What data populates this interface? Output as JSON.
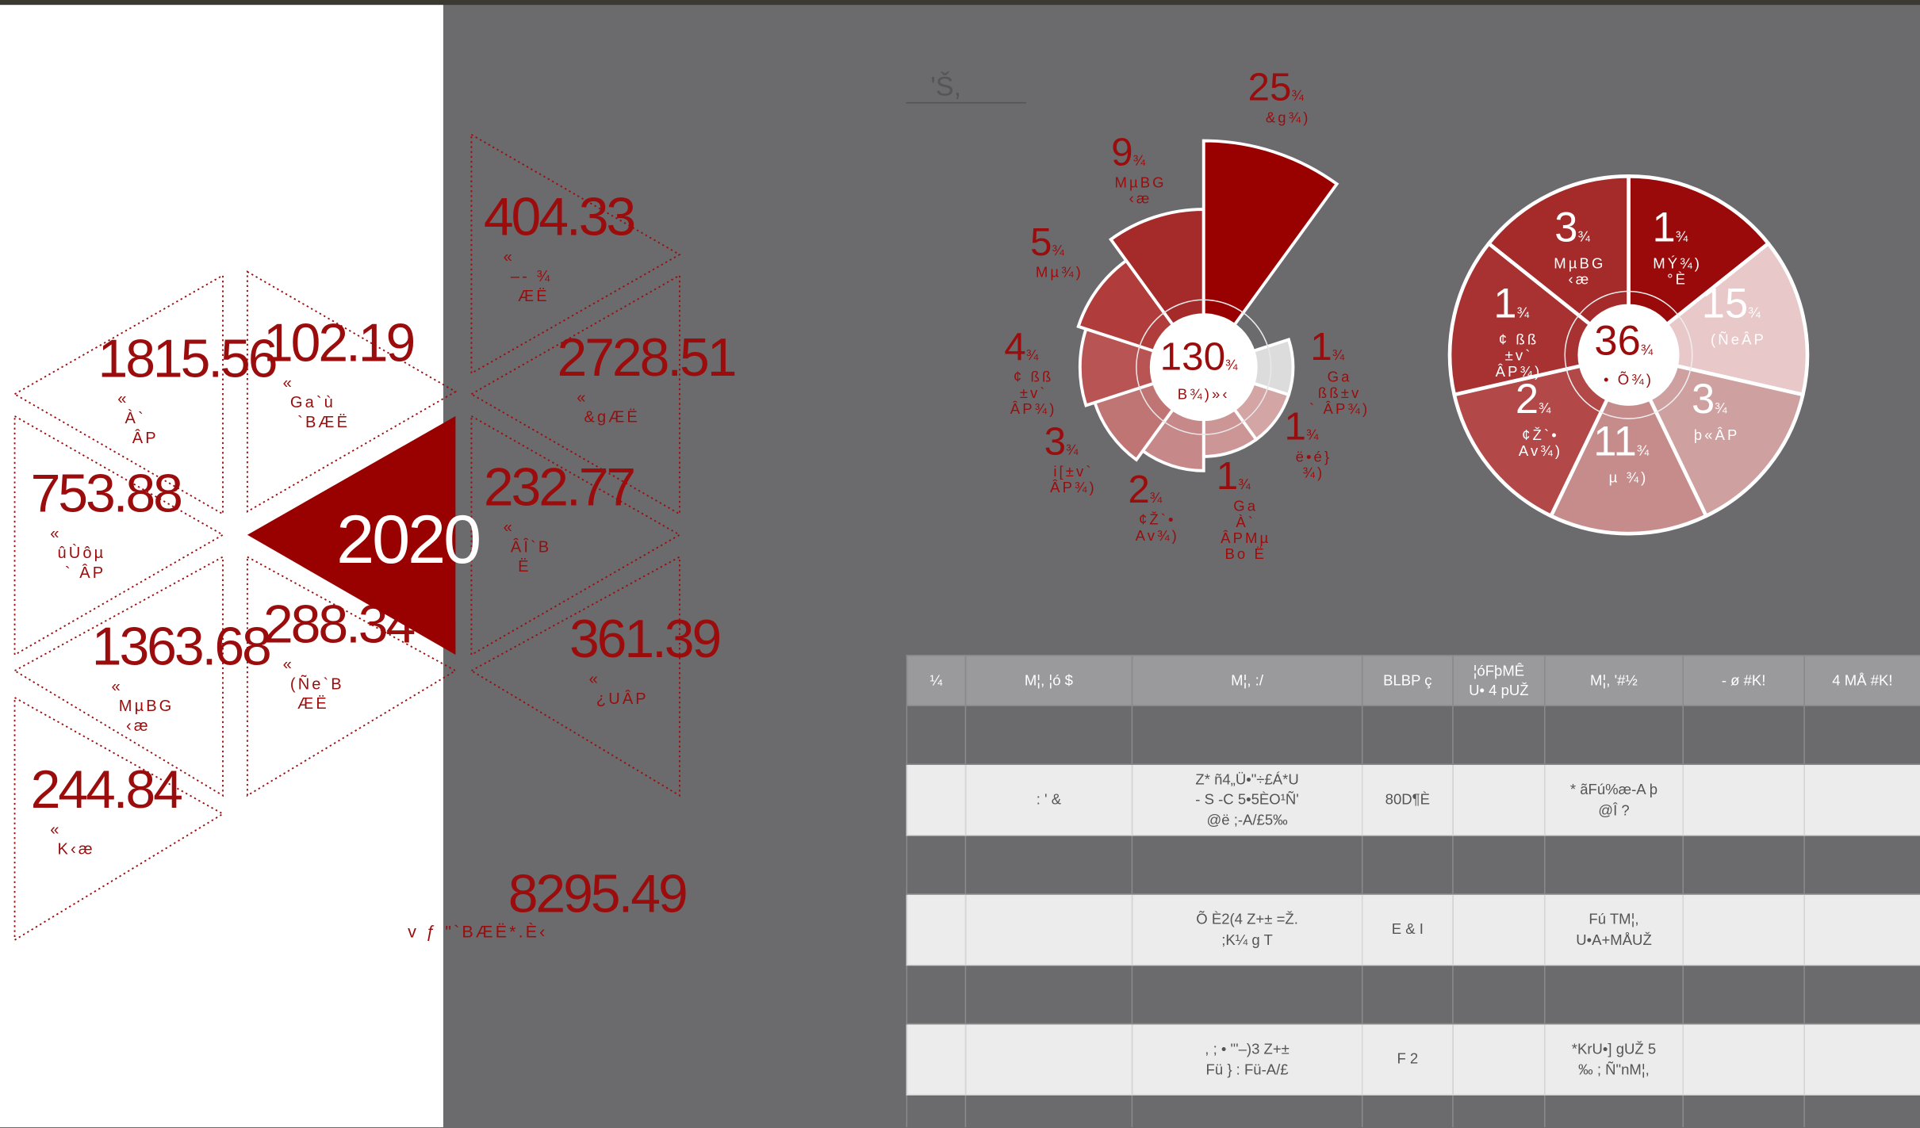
{
  "triangles": [
    {
      "value": 404.33,
      "label": [
        "«",
        "–-  ¾",
        "ÆË"
      ]
    },
    {
      "value": 1815.56,
      "label": [
        "«",
        "À`",
        "ÂP"
      ]
    },
    {
      "value": 102.19,
      "label": [
        "«",
        "Ga`ù",
        "`BÆË"
      ]
    },
    {
      "value": 2728.51,
      "label": [
        "«",
        "&gÆË"
      ]
    },
    {
      "value": 753.88,
      "label": [
        "«",
        "ûÙôµ",
        "` ÂP"
      ]
    },
    {
      "value": 232.77,
      "label": [
        "«",
        "ÂÎ`B",
        "Ë"
      ]
    },
    {
      "value": 1363.68,
      "label": [
        "«",
        "MµBG",
        "‹æ"
      ]
    },
    {
      "value": 288.34,
      "label": [
        "«",
        "(Ñe`B",
        "ÆË"
      ]
    },
    {
      "value": 361.39,
      "label": [
        "«",
        "¿UÂP"
      ]
    },
    {
      "value": 244.84,
      "label": [
        "«",
        "K‹æ"
      ]
    }
  ],
  "year": 2020,
  "total": {
    "value": 8295.49,
    "label": "v ƒ   \"`BÆË*.È‹"
  },
  "rose_chart": {
    "title": "'Š,",
    "unit": "¾",
    "center": {
      "value": 130,
      "label": "B¾)»‹"
    },
    "segments": [
      {
        "value": 1,
        "label": [
          "Ga",
          "ßß±v",
          "` ÂP¾)"
        ],
        "color": "#dcdcdc"
      },
      {
        "value": 1,
        "label": [
          "ë•é}",
          "¾)"
        ],
        "color": "#d4a5a5"
      },
      {
        "value": 1,
        "label": [
          "Ga",
          "À`",
          "ÂPMµ",
          "Bo Ë"
        ],
        "color": "#cc9696"
      },
      {
        "value": 2,
        "label": [
          "¢Ž`•",
          "Av¾)"
        ],
        "color": "#c68888"
      },
      {
        "value": 3,
        "label": [
          "i[±v`",
          "ÂP¾)"
        ],
        "color": "#c07575"
      },
      {
        "value": 4,
        "label": [
          "¢ ßß",
          "±v`",
          "ÂP¾)"
        ],
        "color": "#b85454"
      },
      {
        "value": 5,
        "label": [
          "Mµ¾)"
        ],
        "color": "#b03c3c"
      },
      {
        "value": 9,
        "label": [
          "MµBG",
          "‹æ"
        ],
        "color": "#a52a2a"
      },
      {
        "value": 25,
        "label": [
          "&g¾)"
        ],
        "color": "#990000"
      }
    ]
  },
  "pie_chart": {
    "unit": "¾",
    "center": {
      "value": 36,
      "label": "• Õ¾)"
    },
    "segments": [
      {
        "value": 1,
        "label": [
          "MÝ¾)",
          "°È"
        ],
        "color": "#9a0a0a"
      },
      {
        "value": 15,
        "label": [
          "(ÑeÂP"
        ],
        "color": "#e8c8c8"
      },
      {
        "value": 3,
        "label": [
          "þ«ÂP"
        ],
        "color": "#cfa0a0"
      },
      {
        "value": 11,
        "label": [
          "µ ¾)"
        ],
        "color": "#c68c8c"
      },
      {
        "value": 2,
        "label": [
          "¢Ž`•",
          "Av¾)"
        ],
        "color": "#b34848"
      },
      {
        "value": 1,
        "label": [
          "¢ ßß",
          "±v`",
          "ÂP¾)"
        ],
        "color": "#a83232"
      },
      {
        "value": 3,
        "label": [
          "MµBG",
          "‹æ"
        ],
        "color": "#a52a2a"
      }
    ]
  },
  "table": {
    "headers": [
      "¼",
      "M¦, ¦ó $",
      "M¦, :/",
      "BLBP ç",
      "¦óFþMÊ\nU• 4 pUŽ",
      "M¦, '#½",
      "- ø #K!",
      "4 MÅ #K!"
    ],
    "rows": [
      {
        "1": ": ' &",
        "2": "Z*   ñ4„Ü•\"÷£Á*U\n- S -C   5•5ÈO¹Ñ'\n@ë ;-A/£5‰",
        "3": "80D¶È",
        "5": "* ãFú%æ-A þ\n@Î ?"
      },
      {
        "2": "Õ È2(4  Z+±  =Ž.\n;K¼ g T",
        "3": "E & I",
        "5": "Fú TM¦,\nU•A+MÅUŽ"
      },
      {
        "2": ", ; • \"'–)3 Z+±\nFü } :  Fü-A/£",
        "3": "F    2",
        "5": "*KrU•] gUŽ 5\n‰ ; Ñ\"nM¦,"
      }
    ]
  }
}
